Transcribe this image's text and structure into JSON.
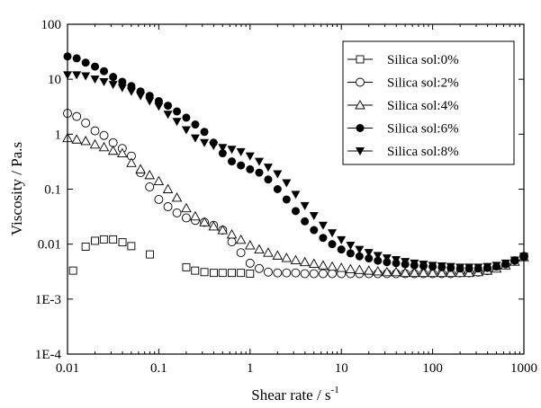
{
  "chart_data": {
    "type": "scatter",
    "x_scale": "log",
    "y_scale": "log",
    "xlim": [
      0.01,
      1000
    ],
    "ylim": [
      0.0001,
      100
    ],
    "xlabel": "Shear rate / s",
    "xlabel_sup": "-1",
    "ylabel": "Viscosity / Pa.s",
    "x_ticks": [
      {
        "value": 0.01,
        "label": "0.01"
      },
      {
        "value": 0.1,
        "label": "0.1"
      },
      {
        "value": 1,
        "label": "1"
      },
      {
        "value": 10,
        "label": "10"
      },
      {
        "value": 100,
        "label": "100"
      },
      {
        "value": 1000,
        "label": "1000"
      }
    ],
    "y_ticks": [
      {
        "value": 0.0001,
        "label": "1E-4"
      },
      {
        "value": 0.001,
        "label": "1E-3"
      },
      {
        "value": 0.01,
        "label": "0.01"
      },
      {
        "value": 0.1,
        "label": "0.1"
      },
      {
        "value": 1,
        "label": "1"
      },
      {
        "value": 10,
        "label": "10"
      },
      {
        "value": 100,
        "label": "100"
      }
    ],
    "grid": false,
    "legend_position": "top-right",
    "series": [
      {
        "name": "Silica sol:0%",
        "marker": "open-square",
        "points": [
          [
            0.0115,
            0.0033
          ],
          [
            0.0158,
            0.009
          ],
          [
            0.02,
            0.0115
          ],
          [
            0.025,
            0.0122
          ],
          [
            0.0316,
            0.0122
          ],
          [
            0.04,
            0.0108
          ],
          [
            0.05,
            0.0092
          ],
          [
            0.08,
            0.0065
          ],
          [
            0.2,
            0.0038
          ],
          [
            0.25,
            0.0033
          ],
          [
            0.316,
            0.0031
          ],
          [
            0.4,
            0.003
          ],
          [
            0.5,
            0.003
          ],
          [
            0.631,
            0.003
          ],
          [
            0.794,
            0.003
          ],
          [
            1,
            0.0029
          ]
        ]
      },
      {
        "name": "Silica sol:2%",
        "marker": "open-circle",
        "points": [
          [
            0.01,
            2.4
          ],
          [
            0.0126,
            2.1
          ],
          [
            0.0158,
            1.6
          ],
          [
            0.02,
            1.15
          ],
          [
            0.0251,
            0.95
          ],
          [
            0.0316,
            0.7
          ],
          [
            0.0398,
            0.55
          ],
          [
            0.0501,
            0.4
          ],
          [
            0.0631,
            0.2
          ],
          [
            0.0794,
            0.11
          ],
          [
            0.1,
            0.065
          ],
          [
            0.126,
            0.048
          ],
          [
            0.158,
            0.037
          ],
          [
            0.2,
            0.03
          ],
          [
            0.251,
            0.027
          ],
          [
            0.316,
            0.025
          ],
          [
            0.398,
            0.022
          ],
          [
            0.501,
            0.018
          ],
          [
            0.631,
            0.011
          ],
          [
            0.794,
            0.007
          ],
          [
            1,
            0.0045
          ],
          [
            1.26,
            0.0036
          ],
          [
            1.58,
            0.0031
          ],
          [
            2,
            0.003
          ],
          [
            2.51,
            0.003
          ],
          [
            3.16,
            0.003
          ],
          [
            3.98,
            0.0029
          ],
          [
            5.01,
            0.0029
          ],
          [
            6.31,
            0.0029
          ],
          [
            7.94,
            0.0029
          ],
          [
            10,
            0.0029
          ],
          [
            12.6,
            0.0029
          ],
          [
            15.8,
            0.0029
          ],
          [
            20,
            0.0029
          ],
          [
            25.1,
            0.0029
          ],
          [
            31.6,
            0.0029
          ],
          [
            39.8,
            0.0029
          ],
          [
            50.1,
            0.0029
          ],
          [
            63.1,
            0.0029
          ],
          [
            79.4,
            0.0029
          ],
          [
            100,
            0.0029
          ],
          [
            126,
            0.0029
          ],
          [
            158,
            0.0029
          ],
          [
            200,
            0.003
          ],
          [
            251,
            0.003
          ],
          [
            316,
            0.0031
          ],
          [
            398,
            0.0033
          ],
          [
            501,
            0.0037
          ],
          [
            631,
            0.0042
          ],
          [
            794,
            0.005
          ],
          [
            1000,
            0.006
          ]
        ]
      },
      {
        "name": "Silica sol:4%",
        "marker": "open-triangle",
        "points": [
          [
            0.01,
            0.85
          ],
          [
            0.0126,
            0.8
          ],
          [
            0.0158,
            0.75
          ],
          [
            0.02,
            0.65
          ],
          [
            0.0251,
            0.58
          ],
          [
            0.0316,
            0.5
          ],
          [
            0.0398,
            0.45
          ],
          [
            0.0501,
            0.3
          ],
          [
            0.0631,
            0.23
          ],
          [
            0.0794,
            0.18
          ],
          [
            0.1,
            0.14
          ],
          [
            0.126,
            0.1
          ],
          [
            0.158,
            0.07
          ],
          [
            0.2,
            0.045
          ],
          [
            0.251,
            0.032
          ],
          [
            0.316,
            0.025
          ],
          [
            0.398,
            0.021
          ],
          [
            0.501,
            0.018
          ],
          [
            0.631,
            0.015
          ],
          [
            0.794,
            0.012
          ],
          [
            1,
            0.0095
          ],
          [
            1.26,
            0.008
          ],
          [
            1.58,
            0.007
          ],
          [
            2,
            0.0062
          ],
          [
            2.51,
            0.0056
          ],
          [
            3.16,
            0.0051
          ],
          [
            3.98,
            0.0047
          ],
          [
            5.01,
            0.0044
          ],
          [
            6.31,
            0.0041
          ],
          [
            7.94,
            0.0039
          ],
          [
            10,
            0.0037
          ],
          [
            12.6,
            0.0035
          ],
          [
            15.8,
            0.0034
          ],
          [
            20,
            0.0033
          ],
          [
            25.1,
            0.0032
          ],
          [
            31.6,
            0.0031
          ],
          [
            39.8,
            0.0031
          ],
          [
            50.1,
            0.003
          ],
          [
            63.1,
            0.003
          ],
          [
            79.4,
            0.003
          ],
          [
            100,
            0.003
          ],
          [
            126,
            0.003
          ],
          [
            158,
            0.003
          ],
          [
            200,
            0.003
          ],
          [
            251,
            0.003
          ],
          [
            316,
            0.0031
          ],
          [
            398,
            0.0033
          ],
          [
            501,
            0.0036
          ],
          [
            631,
            0.0041
          ],
          [
            794,
            0.0048
          ],
          [
            1000,
            0.0058
          ]
        ]
      },
      {
        "name": "Silica sol:6%",
        "marker": "filled-circle",
        "points": [
          [
            0.01,
            26
          ],
          [
            0.0126,
            24
          ],
          [
            0.0158,
            20
          ],
          [
            0.02,
            17
          ],
          [
            0.0251,
            14
          ],
          [
            0.0316,
            11
          ],
          [
            0.0398,
            9
          ],
          [
            0.0501,
            7.5
          ],
          [
            0.0631,
            6
          ],
          [
            0.0794,
            5
          ],
          [
            0.1,
            4
          ],
          [
            0.126,
            3.3
          ],
          [
            0.158,
            2.6
          ],
          [
            0.2,
            2
          ],
          [
            0.251,
            1.5
          ],
          [
            0.316,
            1.1
          ],
          [
            0.398,
            0.7
          ],
          [
            0.501,
            0.45
          ],
          [
            0.631,
            0.32
          ],
          [
            0.794,
            0.27
          ],
          [
            1,
            0.23
          ],
          [
            1.26,
            0.2
          ],
          [
            1.58,
            0.15
          ],
          [
            2,
            0.1
          ],
          [
            2.51,
            0.065
          ],
          [
            3.16,
            0.04
          ],
          [
            3.98,
            0.026
          ],
          [
            5.01,
            0.018
          ],
          [
            6.31,
            0.013
          ],
          [
            7.94,
            0.01
          ],
          [
            10,
            0.008
          ],
          [
            12.6,
            0.0068
          ],
          [
            15.8,
            0.006
          ],
          [
            20,
            0.0055
          ],
          [
            25.1,
            0.005
          ],
          [
            31.6,
            0.0047
          ],
          [
            39.8,
            0.0045
          ],
          [
            50.1,
            0.0043
          ],
          [
            63.1,
            0.0041
          ],
          [
            79.4,
            0.004
          ],
          [
            100,
            0.0039
          ],
          [
            126,
            0.0038
          ],
          [
            158,
            0.0037
          ],
          [
            200,
            0.0036
          ],
          [
            251,
            0.0036
          ],
          [
            316,
            0.0036
          ],
          [
            398,
            0.0037
          ],
          [
            501,
            0.0039
          ],
          [
            631,
            0.0043
          ],
          [
            794,
            0.005
          ],
          [
            1000,
            0.0058
          ]
        ]
      },
      {
        "name": "Silica sol:8%",
        "marker": "filled-down-triangle",
        "points": [
          [
            0.01,
            12
          ],
          [
            0.0126,
            12
          ],
          [
            0.0158,
            11.5
          ],
          [
            0.02,
            10
          ],
          [
            0.0251,
            9
          ],
          [
            0.0316,
            8
          ],
          [
            0.0398,
            7
          ],
          [
            0.0501,
            6
          ],
          [
            0.0631,
            5
          ],
          [
            0.0794,
            4
          ],
          [
            0.1,
            3.2
          ],
          [
            0.126,
            2.3
          ],
          [
            0.158,
            1.7
          ],
          [
            0.2,
            1.2
          ],
          [
            0.251,
            0.85
          ],
          [
            0.316,
            0.7
          ],
          [
            0.398,
            0.62
          ],
          [
            0.501,
            0.57
          ],
          [
            0.631,
            0.53
          ],
          [
            0.794,
            0.48
          ],
          [
            1,
            0.4
          ],
          [
            1.26,
            0.32
          ],
          [
            1.58,
            0.25
          ],
          [
            2,
            0.19
          ],
          [
            2.51,
            0.13
          ],
          [
            3.16,
            0.08
          ],
          [
            3.98,
            0.05
          ],
          [
            5.01,
            0.033
          ],
          [
            6.31,
            0.022
          ],
          [
            7.94,
            0.016
          ],
          [
            10,
            0.012
          ],
          [
            12.6,
            0.0095
          ],
          [
            15.8,
            0.008
          ],
          [
            20,
            0.007
          ],
          [
            25.1,
            0.0062
          ],
          [
            31.6,
            0.0056
          ],
          [
            39.8,
            0.0052
          ],
          [
            50.1,
            0.0048
          ],
          [
            63.1,
            0.0045
          ],
          [
            79.4,
            0.0043
          ],
          [
            100,
            0.0041
          ],
          [
            126,
            0.004
          ],
          [
            158,
            0.0039
          ],
          [
            200,
            0.0038
          ],
          [
            251,
            0.0038
          ],
          [
            316,
            0.0038
          ],
          [
            398,
            0.0039
          ],
          [
            501,
            0.0041
          ],
          [
            631,
            0.0045
          ],
          [
            794,
            0.0051
          ],
          [
            1000,
            0.006
          ]
        ]
      }
    ]
  }
}
